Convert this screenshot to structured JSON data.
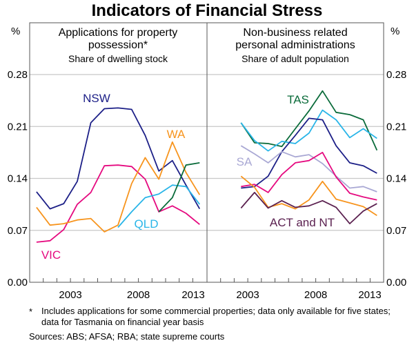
{
  "chart_data": {
    "type": "line",
    "title": "Indicators of Financial Stress",
    "y_unit": "%",
    "ylim": [
      0,
      0.28
    ],
    "yticks": [
      "0.00",
      "0.07",
      "0.14",
      "0.21",
      "0.28"
    ],
    "xlim": [
      2000,
      2013
    ],
    "xtick_labels": [
      "2003",
      "2008",
      "2013"
    ],
    "grid": true,
    "panels": [
      {
        "title": "Applications for property possession*",
        "subtitle": "Share of dwelling stock",
        "series": [
          {
            "name": "NSW",
            "color": "#1c1f87",
            "x": [
              2000.5,
              2001.5,
              2002.5,
              2003.5,
              2004.5,
              2005.5,
              2006.5,
              2007.5,
              2008.5,
              2009.5,
              2010.5,
              2011.5,
              2012.5
            ],
            "values": [
              0.122,
              0.099,
              0.106,
              0.136,
              0.215,
              0.234,
              0.235,
              0.233,
              0.198,
              0.15,
              0.164,
              0.131,
              0.099
            ]
          },
          {
            "name": "VIC",
            "color": "#e5097f",
            "x": [
              2000.5,
              2001.5,
              2002.5,
              2003.5,
              2004.5,
              2005.5,
              2006.5,
              2007.5,
              2008.5,
              2009.5,
              2010.5,
              2011.5,
              2012.5
            ],
            "values": [
              0.054,
              0.056,
              0.071,
              0.105,
              0.121,
              0.157,
              0.158,
              0.156,
              0.139,
              0.095,
              0.103,
              0.093,
              0.078
            ]
          },
          {
            "name": "WA",
            "color": "#f7941d",
            "x": [
              2000.5,
              2001.5,
              2002.5,
              2003.5,
              2004.5,
              2005.5,
              2006.5,
              2007.5,
              2008.5,
              2009.5,
              2010.5,
              2011.5,
              2012.5
            ],
            "values": [
              0.101,
              0.077,
              0.079,
              0.084,
              0.086,
              0.068,
              0.077,
              0.133,
              0.168,
              0.139,
              0.189,
              0.148,
              0.118
            ]
          },
          {
            "name": "QLD",
            "color": "#29b5e8",
            "x": [
              2006.5,
              2007.5,
              2008.5,
              2009.5,
              2010.5,
              2011.5,
              2012.5
            ],
            "values": [
              0.074,
              0.095,
              0.114,
              0.119,
              0.131,
              0.129,
              0.105
            ]
          },
          {
            "name": "TAS",
            "color": "#0a6b3a",
            "label": "",
            "x": [
              2009.5,
              2010.5,
              2011.5,
              2012.5
            ],
            "values": [
              0.095,
              0.114,
              0.158,
              0.161
            ]
          }
        ]
      },
      {
        "title": "Non-business related personal administrations",
        "subtitle": "Share of adult population",
        "series": [
          {
            "name": "TAS",
            "color": "#0a6b3a",
            "x": [
              2002.5,
              2003.5,
              2004.5,
              2005.5,
              2006.5,
              2007.5,
              2008.5,
              2009.5,
              2010.5,
              2011.5,
              2012.5
            ],
            "values": [
              0.215,
              0.188,
              0.187,
              0.183,
              0.207,
              0.231,
              0.258,
              0.229,
              0.226,
              0.219,
              0.178
            ]
          },
          {
            "name": "QLD",
            "color": "#29b5e8",
            "label": "",
            "x": [
              2002.5,
              2003.5,
              2004.5,
              2005.5,
              2006.5,
              2007.5,
              2008.5,
              2009.5,
              2010.5,
              2011.5,
              2012.5
            ],
            "values": [
              0.215,
              0.191,
              0.177,
              0.19,
              0.187,
              0.201,
              0.232,
              0.219,
              0.195,
              0.207,
              0.194
            ]
          },
          {
            "name": "NSW",
            "color": "#1c1f87",
            "label": "",
            "x": [
              2002.5,
              2003.5,
              2004.5,
              2005.5,
              2006.5,
              2007.5,
              2008.5,
              2009.5,
              2010.5,
              2011.5,
              2012.5
            ],
            "values": [
              0.127,
              0.129,
              0.143,
              0.176,
              0.198,
              0.221,
              0.219,
              0.184,
              0.161,
              0.157,
              0.147
            ]
          },
          {
            "name": "SA",
            "color": "#a9a8d4",
            "x": [
              2002.5,
              2003.5,
              2004.5,
              2005.5,
              2006.5,
              2007.5,
              2008.5,
              2009.5,
              2010.5,
              2011.5,
              2012.5
            ],
            "values": [
              0.184,
              0.173,
              0.161,
              0.176,
              0.169,
              0.172,
              0.16,
              0.143,
              0.127,
              0.129,
              0.122
            ]
          },
          {
            "name": "VIC",
            "color": "#e5097f",
            "label": "",
            "x": [
              2002.5,
              2003.5,
              2004.5,
              2005.5,
              2006.5,
              2007.5,
              2008.5,
              2009.5,
              2010.5,
              2011.5,
              2012.5
            ],
            "values": [
              0.129,
              0.132,
              0.121,
              0.145,
              0.161,
              0.164,
              0.175,
              0.142,
              0.12,
              0.115,
              0.111
            ]
          },
          {
            "name": "WA",
            "color": "#f7941d",
            "label": "",
            "x": [
              2002.5,
              2003.5,
              2004.5,
              2005.5,
              2006.5,
              2007.5,
              2008.5,
              2009.5,
              2010.5,
              2011.5,
              2012.5
            ],
            "values": [
              0.143,
              0.128,
              0.101,
              0.106,
              0.099,
              0.111,
              0.136,
              0.112,
              0.107,
              0.102,
              0.09
            ]
          },
          {
            "name": "ACT and NT",
            "color": "#5b2150",
            "x": [
              2002.5,
              2003.5,
              2004.5,
              2005.5,
              2006.5,
              2007.5,
              2008.5,
              2009.5,
              2010.5,
              2011.5,
              2012.5
            ],
            "values": [
              0.1,
              0.121,
              0.1,
              0.11,
              0.101,
              0.103,
              0.11,
              0.101,
              0.079,
              0.096,
              0.106
            ]
          }
        ]
      }
    ],
    "footnote": "Includes applications for some commercial properties; data only available for five states; data for Tasmania on financial year basis",
    "footnote_marker": "*",
    "sources": "Sources: ABS; AFSA; RBA; state supreme courts"
  }
}
